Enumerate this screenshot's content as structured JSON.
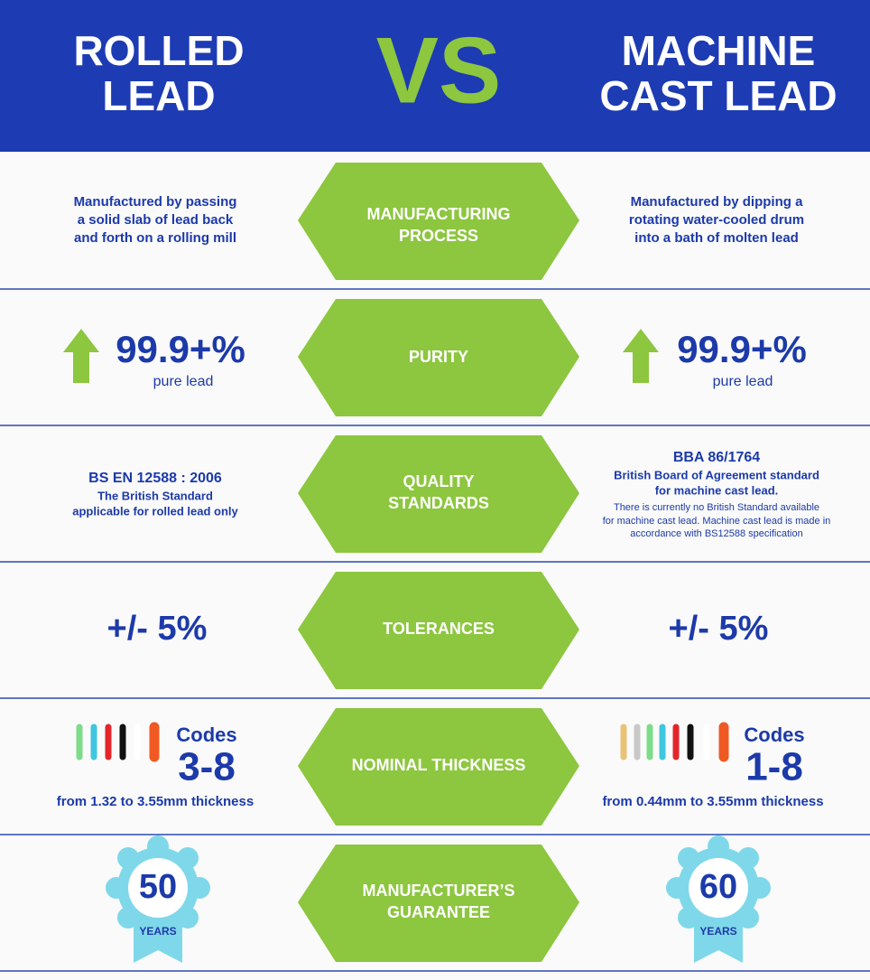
{
  "header": {
    "left_title": [
      "ROLLED",
      "LEAD"
    ],
    "vs": "VS",
    "right_title": [
      "MACHINE",
      "CAST LEAD"
    ]
  },
  "rows": [
    {
      "label": [
        "MANUFACTURING",
        "PROCESS"
      ],
      "left": [
        "Manufactured by passing",
        "a solid slab of lead back",
        "and forth on a rolling mill"
      ],
      "right": [
        "Manufactured by dipping a",
        "rotating water-cooled drum",
        "into a bath of molten lead"
      ]
    },
    {
      "label": [
        "PURITY"
      ],
      "left": {
        "value": "99.9+%",
        "caption": "pure lead"
      },
      "right": {
        "value": "99.9+%",
        "caption": "pure lead"
      }
    },
    {
      "label": [
        "QUALITY",
        "STANDARDS"
      ],
      "left": {
        "title": "BS EN 12588 : 2006",
        "lines": [
          "The British Standard",
          "applicable for rolled lead only"
        ]
      },
      "right": {
        "title": "BBA 86/1764",
        "lines": [
          "British Board of Agreement standard",
          "for machine cast lead."
        ],
        "note": [
          "There is currently no British Standard available",
          "for machine cast lead. Machine cast lead is made in",
          "accordance with BS12588 specification"
        ]
      }
    },
    {
      "label": [
        "TOLERANCES"
      ],
      "left": "+/- 5%",
      "right": "+/- 5%"
    },
    {
      "label": [
        "NOMINAL THICKNESS"
      ],
      "left": {
        "codes_label": "Codes",
        "codes": "3-8",
        "caption": "from 1.32 to 3.55mm thickness"
      },
      "right": {
        "codes_label": "Codes",
        "codes": "1-8",
        "caption": "from 0.44mm to 3.55mm thickness"
      }
    },
    {
      "label": [
        "MANUFACTURER’S",
        "GUARANTEE"
      ],
      "left": {
        "years": "50",
        "unit": "YEARS"
      },
      "right": {
        "years": "60",
        "unit": "YEARS"
      }
    }
  ]
}
